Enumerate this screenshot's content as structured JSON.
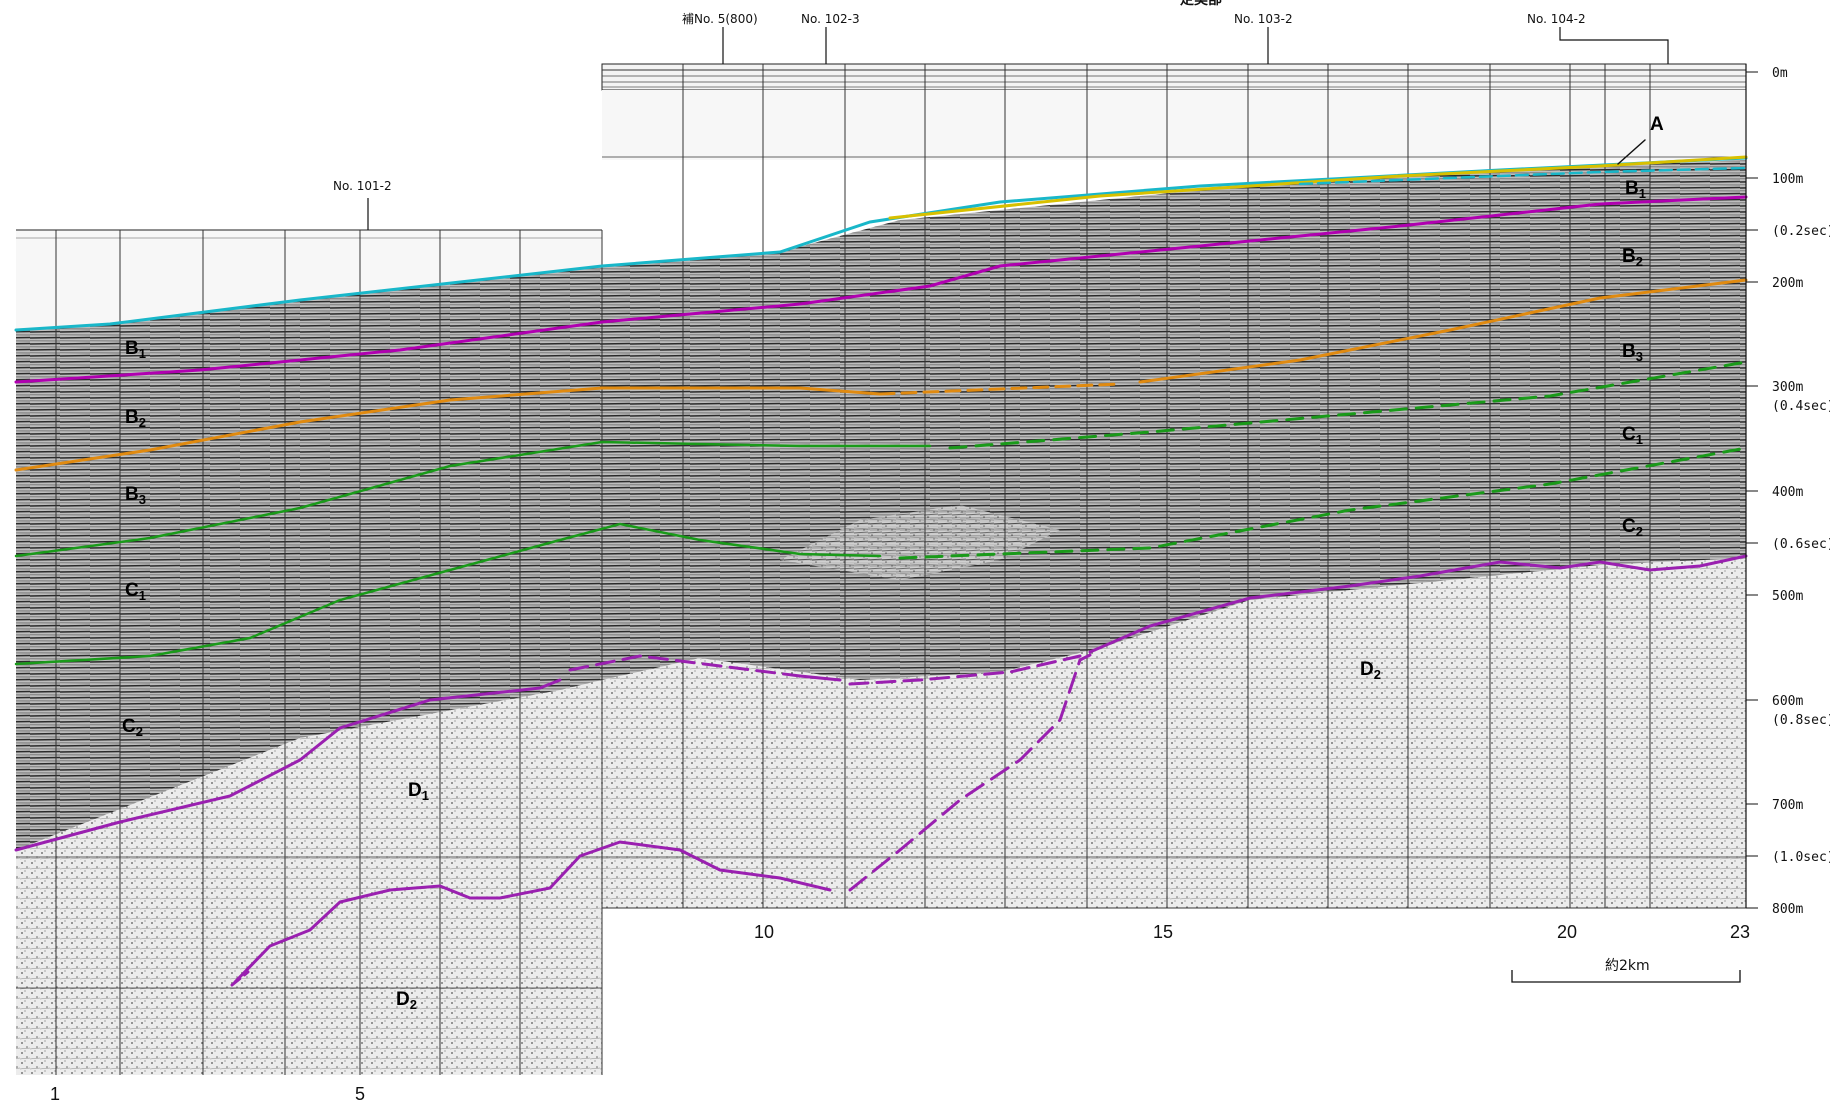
{
  "header_fragment": "定美部",
  "stations": [
    {
      "id": "st-101-2",
      "label": "No. 101-2"
    },
    {
      "id": "st-sup5",
      "label": "補No. 5(800)"
    },
    {
      "id": "st-102-3",
      "label": "No. 102-3"
    },
    {
      "id": "st-103-2",
      "label": "No. 103-2"
    },
    {
      "id": "st-104-2",
      "label": "No. 104-2"
    }
  ],
  "depth_axis": [
    {
      "id": "d0",
      "label": "0m"
    },
    {
      "id": "d100",
      "label": "100m"
    },
    {
      "id": "d02",
      "label": "(0.2sec)"
    },
    {
      "id": "d200",
      "label": "200m"
    },
    {
      "id": "d300",
      "label": "300m"
    },
    {
      "id": "d04",
      "label": "(0.4sec)"
    },
    {
      "id": "d400",
      "label": "400m"
    },
    {
      "id": "d06",
      "label": "(0.6sec)"
    },
    {
      "id": "d500",
      "label": "500m"
    },
    {
      "id": "d600",
      "label": "600m"
    },
    {
      "id": "d08",
      "label": "(0.8sec)"
    },
    {
      "id": "d700",
      "label": "700m"
    },
    {
      "id": "d10",
      "label": "(1.0sec)"
    },
    {
      "id": "d800",
      "label": "800m"
    }
  ],
  "distance_ticks": [
    {
      "id": "x1",
      "label": "1"
    },
    {
      "id": "x5",
      "label": "5"
    },
    {
      "id": "x10",
      "label": "10"
    },
    {
      "id": "x15",
      "label": "15"
    },
    {
      "id": "x20",
      "label": "20"
    },
    {
      "id": "x23",
      "label": "23"
    }
  ],
  "scale_bar": {
    "label": "約2km"
  },
  "units": {
    "A": {
      "main": "A",
      "sub": ""
    },
    "B1": {
      "main": "B",
      "sub": "1"
    },
    "B2": {
      "main": "B",
      "sub": "2"
    },
    "B3": {
      "main": "B",
      "sub": "3"
    },
    "C1": {
      "main": "C",
      "sub": "1"
    },
    "C2": {
      "main": "C",
      "sub": "2"
    },
    "D1": {
      "main": "D",
      "sub": "1"
    },
    "D2": {
      "main": "D",
      "sub": "2"
    }
  },
  "colors": {
    "seafloor": "#19b7c9",
    "A_top": "#d8c000",
    "B1_base": "#b000b0",
    "B2_base": "#e08a10",
    "B3_base": "#1a9a1a",
    "C1_base": "#1a9a1a",
    "D_top": "#9a20b0",
    "fault": "#9a20b0",
    "seismic_light": "#dcdcdc",
    "seismic_dark": "#303030",
    "gridline": "#333333"
  }
}
